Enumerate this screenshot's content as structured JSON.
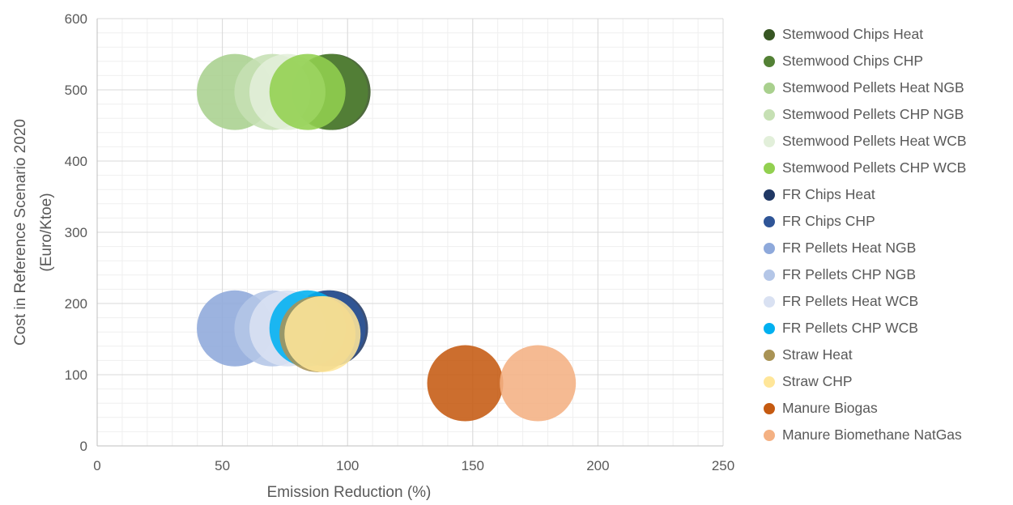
{
  "chart_data": {
    "type": "scatter",
    "subtype": "bubble",
    "title": "",
    "xlabel": "Emission Reduction (%)",
    "ylabel_lines": [
      "Cost in Reference Scenario 2020",
      "(Euro/Ktoe)"
    ],
    "xlim": [
      0,
      250
    ],
    "ylim": [
      0,
      600
    ],
    "x_ticks": [
      0,
      50,
      100,
      150,
      200,
      250
    ],
    "y_ticks": [
      0,
      100,
      200,
      300,
      400,
      500,
      600
    ],
    "x_tick_labels": [
      "0",
      "50",
      "100",
      "150",
      "200",
      "250"
    ],
    "y_tick_labels": [
      "0",
      "100",
      "200",
      "300",
      "400",
      "500",
      "600"
    ],
    "grid": true,
    "minor_grid": true,
    "legend_position": "right",
    "series": [
      {
        "name": "Stemwood Chips Heat",
        "color": "#375623",
        "x": 94,
        "y": 497,
        "size": 1
      },
      {
        "name": "Stemwood Chips CHP",
        "color": "#538135",
        "x": 93,
        "y": 497,
        "size": 1
      },
      {
        "name": "Stemwood Pellets Heat NGB",
        "color": "#A9D08E",
        "x": 55,
        "y": 497,
        "size": 1
      },
      {
        "name": "Stemwood Pellets CHP NGB",
        "color": "#C6E0B4",
        "x": 70,
        "y": 497,
        "size": 1
      },
      {
        "name": "Stemwood Pellets Heat WCB",
        "color": "#E2EFDA",
        "x": 76,
        "y": 497,
        "size": 1
      },
      {
        "name": "Stemwood Pellets CHP WCB",
        "color": "#92D050",
        "x": 84,
        "y": 497,
        "size": 1
      },
      {
        "name": "FR Chips Heat",
        "color": "#203864",
        "x": 93,
        "y": 165,
        "size": 1
      },
      {
        "name": "FR Chips CHP",
        "color": "#2F5597",
        "x": 92,
        "y": 165,
        "size": 1
      },
      {
        "name": "FR Pellets Heat NGB",
        "color": "#8EA9DB",
        "x": 55,
        "y": 165,
        "size": 1
      },
      {
        "name": "FR Pellets CHP NGB",
        "color": "#B4C6E7",
        "x": 70,
        "y": 165,
        "size": 1
      },
      {
        "name": "FR Pellets Heat WCB",
        "color": "#D9E1F2",
        "x": 76,
        "y": 165,
        "size": 1
      },
      {
        "name": "FR Pellets CHP WCB",
        "color": "#00B0F0",
        "x": 84,
        "y": 165,
        "size": 1
      },
      {
        "name": "Straw Heat",
        "color": "#A99355",
        "x": 88,
        "y": 157,
        "size": 1
      },
      {
        "name": "Straw CHP",
        "color": "#FFE699",
        "x": 90,
        "y": 157,
        "size": 1
      },
      {
        "name": "Manure Biogas",
        "color": "#C55A11",
        "x": 147,
        "y": 88,
        "size": 1
      },
      {
        "name": "Manure Biomethane NatGas",
        "color": "#F4B183",
        "x": 176,
        "y": 88,
        "size": 1
      }
    ]
  }
}
